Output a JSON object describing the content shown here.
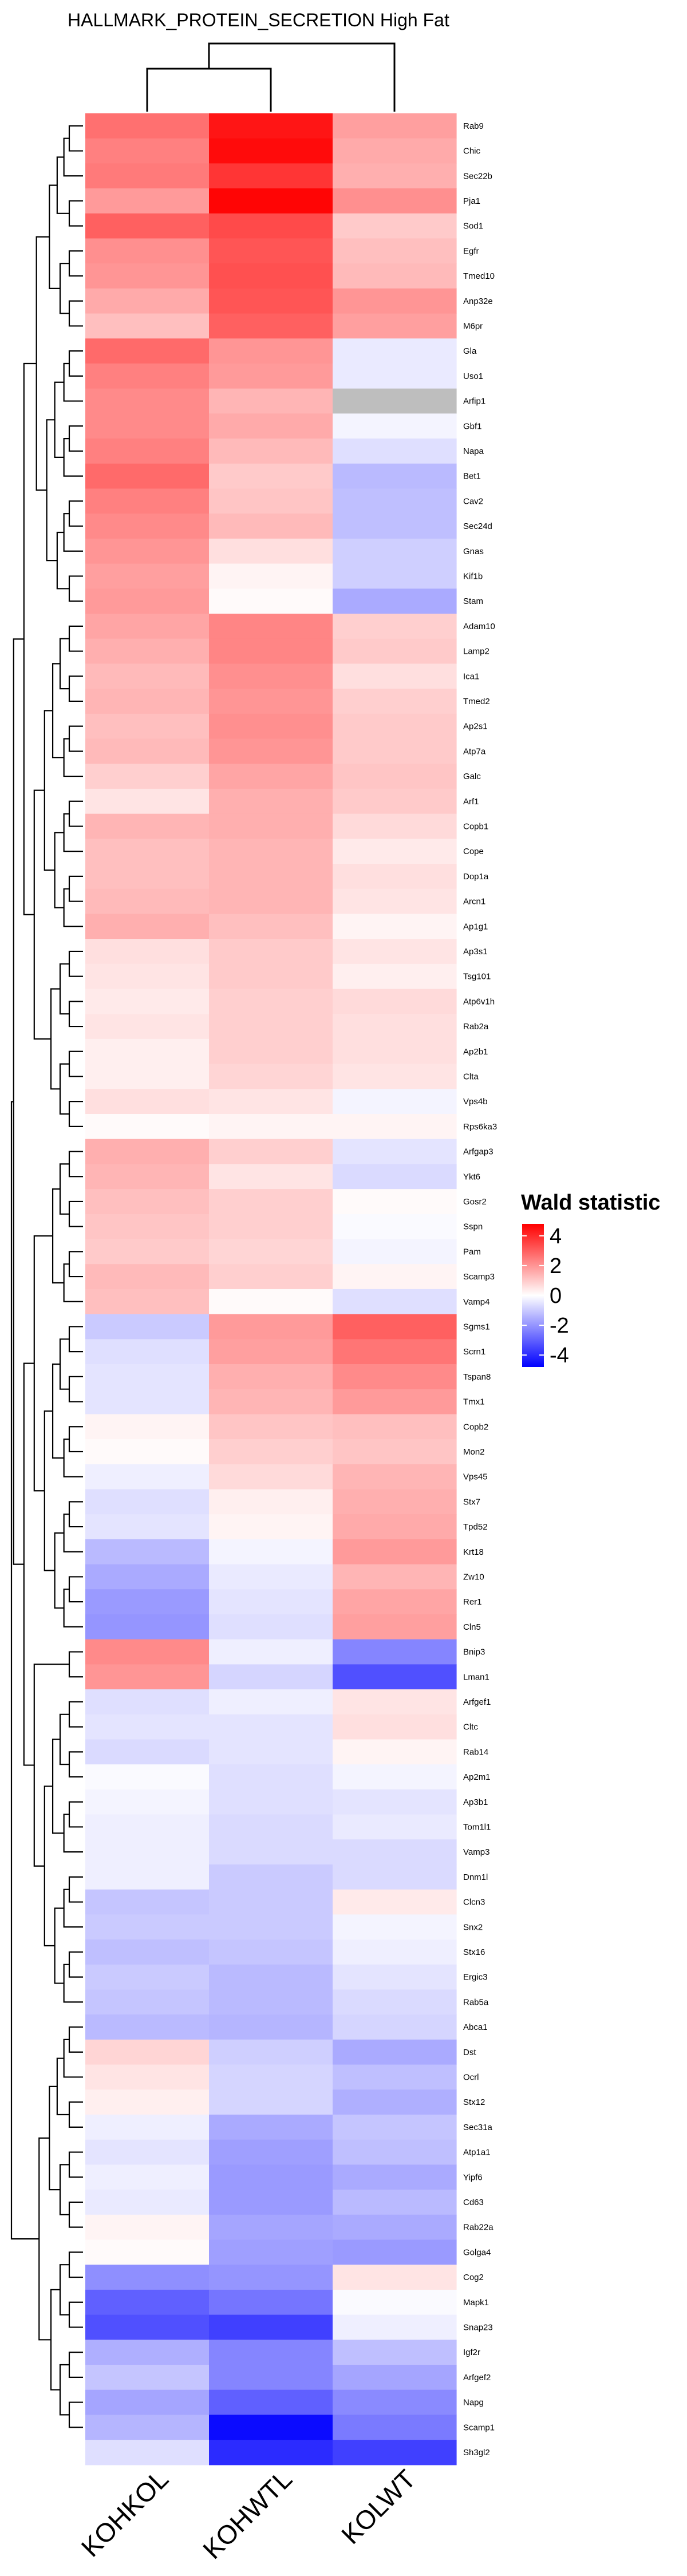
{
  "chart_data": {
    "type": "heatmap",
    "title": "HALLMARK_PROTEIN_SECRETION High Fat",
    "columns": [
      "KOHKOL",
      "KOHWTL",
      "KOLWT"
    ],
    "rows": [
      {
        "gene": "Rab9",
        "values": [
          2.7,
          4.4,
          1.8
        ]
      },
      {
        "gene": "Chic",
        "values": [
          2.4,
          4.6,
          1.6
        ]
      },
      {
        "gene": "Sec22b",
        "values": [
          2.5,
          3.8,
          1.5
        ]
      },
      {
        "gene": "Pja1",
        "values": [
          1.9,
          4.7,
          2.1
        ]
      },
      {
        "gene": "Sod1",
        "values": [
          3.0,
          3.4,
          1.0
        ]
      },
      {
        "gene": "Egfr",
        "values": [
          2.1,
          3.2,
          1.2
        ]
      },
      {
        "gene": "Tmed10",
        "values": [
          2.0,
          3.3,
          1.3
        ]
      },
      {
        "gene": "Anp32e",
        "values": [
          1.6,
          3.2,
          2.0
        ]
      },
      {
        "gene": "M6pr",
        "values": [
          1.2,
          3.0,
          1.8
        ]
      },
      {
        "gene": "Gla",
        "values": [
          2.8,
          2.0,
          -0.4
        ]
      },
      {
        "gene": "Uso1",
        "values": [
          2.4,
          1.9,
          -0.4
        ]
      },
      {
        "gene": "Arfip1",
        "values": [
          2.2,
          1.4,
          null
        ]
      },
      {
        "gene": "Gbf1",
        "values": [
          2.2,
          1.6,
          -0.2
        ]
      },
      {
        "gene": "Napa",
        "values": [
          2.4,
          1.3,
          -0.6
        ]
      },
      {
        "gene": "Bet1",
        "values": [
          2.8,
          1.0,
          -1.3
        ]
      },
      {
        "gene": "Cav2",
        "values": [
          2.4,
          1.1,
          -1.2
        ]
      },
      {
        "gene": "Sec24d",
        "values": [
          2.2,
          1.3,
          -1.2
        ]
      },
      {
        "gene": "Gnas",
        "values": [
          2.0,
          0.6,
          -0.9
        ]
      },
      {
        "gene": "Kif1b",
        "values": [
          1.8,
          0.2,
          -0.9
        ]
      },
      {
        "gene": "Stam",
        "values": [
          1.9,
          0.1,
          -1.6
        ]
      },
      {
        "gene": "Adam10",
        "values": [
          1.7,
          2.3,
          0.9
        ]
      },
      {
        "gene": "Lamp2",
        "values": [
          1.5,
          2.3,
          1.0
        ]
      },
      {
        "gene": "Ica1",
        "values": [
          1.3,
          2.1,
          0.6
        ]
      },
      {
        "gene": "Tmed2",
        "values": [
          1.4,
          2.0,
          0.9
        ]
      },
      {
        "gene": "Ap2s1",
        "values": [
          1.2,
          2.1,
          1.0
        ]
      },
      {
        "gene": "Atp7a",
        "values": [
          1.3,
          2.0,
          1.0
        ]
      },
      {
        "gene": "Galc",
        "values": [
          0.9,
          1.7,
          1.1
        ]
      },
      {
        "gene": "Arf1",
        "values": [
          0.5,
          1.5,
          1.0
        ]
      },
      {
        "gene": "Copb1",
        "values": [
          1.4,
          1.5,
          0.7
        ]
      },
      {
        "gene": "Cope",
        "values": [
          1.2,
          1.4,
          0.4
        ]
      },
      {
        "gene": "Dop1a",
        "values": [
          1.2,
          1.4,
          0.6
        ]
      },
      {
        "gene": "Arcn1",
        "values": [
          1.3,
          1.4,
          0.5
        ]
      },
      {
        "gene": "Ap1g1",
        "values": [
          1.5,
          1.2,
          0.2
        ]
      },
      {
        "gene": "Ap3s1",
        "values": [
          0.6,
          1.0,
          0.5
        ]
      },
      {
        "gene": "Tsg101",
        "values": [
          0.5,
          1.0,
          0.3
        ]
      },
      {
        "gene": "Atp6v1h",
        "values": [
          0.4,
          0.9,
          0.7
        ]
      },
      {
        "gene": "Rab2a",
        "values": [
          0.5,
          0.9,
          0.6
        ]
      },
      {
        "gene": "Ap2b1",
        "values": [
          0.3,
          0.9,
          0.6
        ]
      },
      {
        "gene": "Clta",
        "values": [
          0.3,
          0.8,
          0.5
        ]
      },
      {
        "gene": "Vps4b",
        "values": [
          0.6,
          0.5,
          -0.2
        ]
      },
      {
        "gene": "Rps6ka3",
        "values": [
          0.1,
          0.2,
          0.2
        ]
      },
      {
        "gene": "Arfgap3",
        "values": [
          1.5,
          0.9,
          -0.5
        ]
      },
      {
        "gene": "Ykt6",
        "values": [
          1.4,
          0.5,
          -0.7
        ]
      },
      {
        "gene": "Gosr2",
        "values": [
          1.2,
          0.9,
          0.1
        ]
      },
      {
        "gene": "Sspn",
        "values": [
          1.1,
          0.9,
          -0.1
        ]
      },
      {
        "gene": "Pam",
        "values": [
          1.0,
          0.8,
          -0.2
        ]
      },
      {
        "gene": "Scamp3",
        "values": [
          1.3,
          0.9,
          0.2
        ]
      },
      {
        "gene": "Vamp4",
        "values": [
          1.2,
          0.1,
          -0.6
        ]
      },
      {
        "gene": "Sgms1",
        "values": [
          -1.0,
          1.9,
          3.0
        ]
      },
      {
        "gene": "Scrn1",
        "values": [
          -0.6,
          1.8,
          2.6
        ]
      },
      {
        "gene": "Tspan8",
        "values": [
          -0.5,
          1.5,
          2.2
        ]
      },
      {
        "gene": "Tmx1",
        "values": [
          -0.5,
          1.4,
          1.9
        ]
      },
      {
        "gene": "Copb2",
        "values": [
          0.2,
          1.1,
          1.2
        ]
      },
      {
        "gene": "Mon2",
        "values": [
          0.1,
          0.9,
          1.1
        ]
      },
      {
        "gene": "Vps45",
        "values": [
          -0.3,
          0.7,
          1.4
        ]
      },
      {
        "gene": "Stx7",
        "values": [
          -0.6,
          0.3,
          1.5
        ]
      },
      {
        "gene": "Tpd52",
        "values": [
          -0.5,
          0.2,
          1.6
        ]
      },
      {
        "gene": "Krt18",
        "values": [
          -1.3,
          -0.2,
          1.9
        ]
      },
      {
        "gene": "Zw10",
        "values": [
          -1.6,
          -0.4,
          1.4
        ]
      },
      {
        "gene": "Rer1",
        "values": [
          -1.9,
          -0.5,
          1.7
        ]
      },
      {
        "gene": "Cln5",
        "values": [
          -2.0,
          -0.6,
          1.8
        ]
      },
      {
        "gene": "Bnip3",
        "values": [
          2.2,
          -0.3,
          -2.3
        ]
      },
      {
        "gene": "Lman1",
        "values": [
          2.0,
          -0.8,
          -3.3
        ]
      },
      {
        "gene": "Arfgef1",
        "values": [
          -0.6,
          -0.3,
          0.5
        ]
      },
      {
        "gene": "Cltc",
        "values": [
          -0.5,
          -0.5,
          0.6
        ]
      },
      {
        "gene": "Rab14",
        "values": [
          -0.7,
          -0.5,
          0.2
        ]
      },
      {
        "gene": "Ap2m1",
        "values": [
          -0.1,
          -0.6,
          -0.2
        ]
      },
      {
        "gene": "Ap3b1",
        "values": [
          -0.2,
          -0.6,
          -0.5
        ]
      },
      {
        "gene": "Tom1l1",
        "values": [
          -0.3,
          -0.7,
          -0.4
        ]
      },
      {
        "gene": "Vamp3",
        "values": [
          -0.3,
          -0.7,
          -0.7
        ]
      },
      {
        "gene": "Dnm1l",
        "values": [
          -0.3,
          -1.0,
          -0.7
        ]
      },
      {
        "gene": "Clcn3",
        "values": [
          -1.1,
          -1.0,
          0.4
        ]
      },
      {
        "gene": "Snx2",
        "values": [
          -1.0,
          -1.0,
          -0.2
        ]
      },
      {
        "gene": "Stx16",
        "values": [
          -1.2,
          -1.1,
          -0.3
        ]
      },
      {
        "gene": "Ergic3",
        "values": [
          -1.0,
          -1.3,
          -0.5
        ]
      },
      {
        "gene": "Rab5a",
        "values": [
          -1.1,
          -1.3,
          -0.7
        ]
      },
      {
        "gene": "Abca1",
        "values": [
          -1.3,
          -1.4,
          -0.8
        ]
      },
      {
        "gene": "Dst",
        "values": [
          0.8,
          -0.9,
          -1.6
        ]
      },
      {
        "gene": "Ocrl",
        "values": [
          0.5,
          -0.8,
          -1.2
        ]
      },
      {
        "gene": "Stx12",
        "values": [
          0.3,
          -0.8,
          -1.5
        ]
      },
      {
        "gene": "Sec31a",
        "values": [
          -0.3,
          -1.6,
          -1.1
        ]
      },
      {
        "gene": "Atp1a1",
        "values": [
          -0.5,
          -1.8,
          -1.2
        ]
      },
      {
        "gene": "Yipf6",
        "values": [
          -0.3,
          -1.9,
          -1.6
        ]
      },
      {
        "gene": "Cd63",
        "values": [
          -0.4,
          -1.9,
          -1.3
        ]
      },
      {
        "gene": "Rab22a",
        "values": [
          0.2,
          -1.7,
          -1.6
        ]
      },
      {
        "gene": "Golga4",
        "values": [
          0.1,
          -1.8,
          -1.9
        ]
      },
      {
        "gene": "Cog2",
        "values": [
          -2.1,
          -2.0,
          0.5
        ]
      },
      {
        "gene": "Mapk1",
        "values": [
          -3.0,
          -2.6,
          -0.1
        ]
      },
      {
        "gene": "Snap23",
        "values": [
          -3.3,
          -3.6,
          -0.3
        ]
      },
      {
        "gene": "Igf2r",
        "values": [
          -1.5,
          -2.3,
          -1.2
        ]
      },
      {
        "gene": "Arfgef2",
        "values": [
          -1.1,
          -2.3,
          -1.7
        ]
      },
      {
        "gene": "Napg",
        "values": [
          -1.7,
          -3.0,
          -2.2
        ]
      },
      {
        "gene": "Scamp1",
        "values": [
          -1.4,
          -4.6,
          -2.5
        ]
      },
      {
        "gene": "Sh3gl2",
        "values": [
          -0.6,
          -4.0,
          -3.6
        ]
      }
    ],
    "na_color": "#bebebe",
    "color_scale": {
      "min": -4.8,
      "max": 4.8,
      "low": "#0000ff",
      "mid": "#ffffff",
      "high": "#ff0000"
    },
    "legend": {
      "title": "Wald statistic",
      "ticks": [
        4,
        2,
        0,
        -2,
        -4
      ],
      "placement": "right"
    },
    "dendrogram": {
      "rows": true,
      "columns": true,
      "column_order": [
        "KOHKOL",
        "KOHWTL",
        "KOLWT"
      ]
    }
  }
}
